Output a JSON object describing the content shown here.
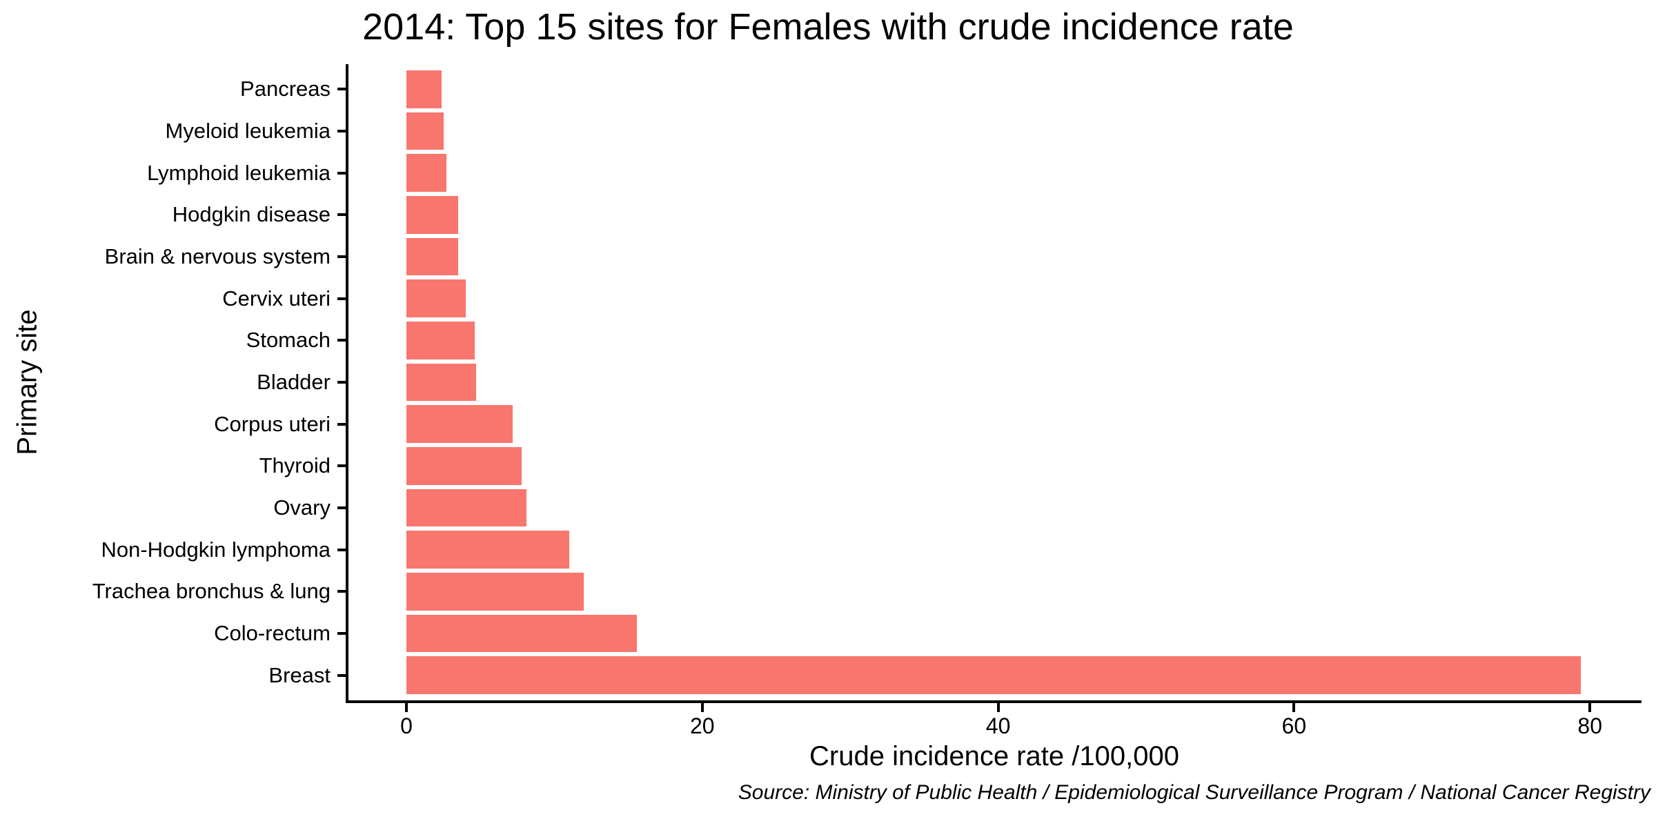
{
  "title": "2014: Top 15 sites for Females with crude incidence rate",
  "source": "Source: Ministry of Public Health / Epidemiological Surveillance Program / National Cancer Registry",
  "chart_data": {
    "type": "bar",
    "orientation": "horizontal",
    "title": "2014: Top 15 sites for Females with crude incidence rate",
    "xlabel": "Crude incidence rate /100,000",
    "ylabel": "Primary site",
    "categories": [
      "Pancreas",
      "Myeloid leukemia",
      "Lymphoid leukemia",
      "Hodgkin disease",
      "Brain & nervous system",
      "Cervix uteri",
      "Stomach",
      "Bladder",
      "Corpus uteri",
      "Thyroid",
      "Ovary",
      "Non-Hodgkin lymphoma",
      "Trachea bronchus & lung",
      "Colo-rectum",
      "Breast"
    ],
    "values": [
      2.4,
      2.5,
      2.7,
      3.5,
      3.5,
      4.0,
      4.6,
      4.7,
      7.2,
      7.8,
      8.1,
      11.0,
      12.0,
      15.6,
      79.4
    ],
    "x_ticks": [
      0,
      20,
      40,
      60,
      80
    ],
    "xlim": [
      0,
      83.5
    ],
    "grid": false,
    "legend": false,
    "bar_color": "#F8766D",
    "axis_color": "#000000",
    "background_color": "#FFFFFF"
  }
}
